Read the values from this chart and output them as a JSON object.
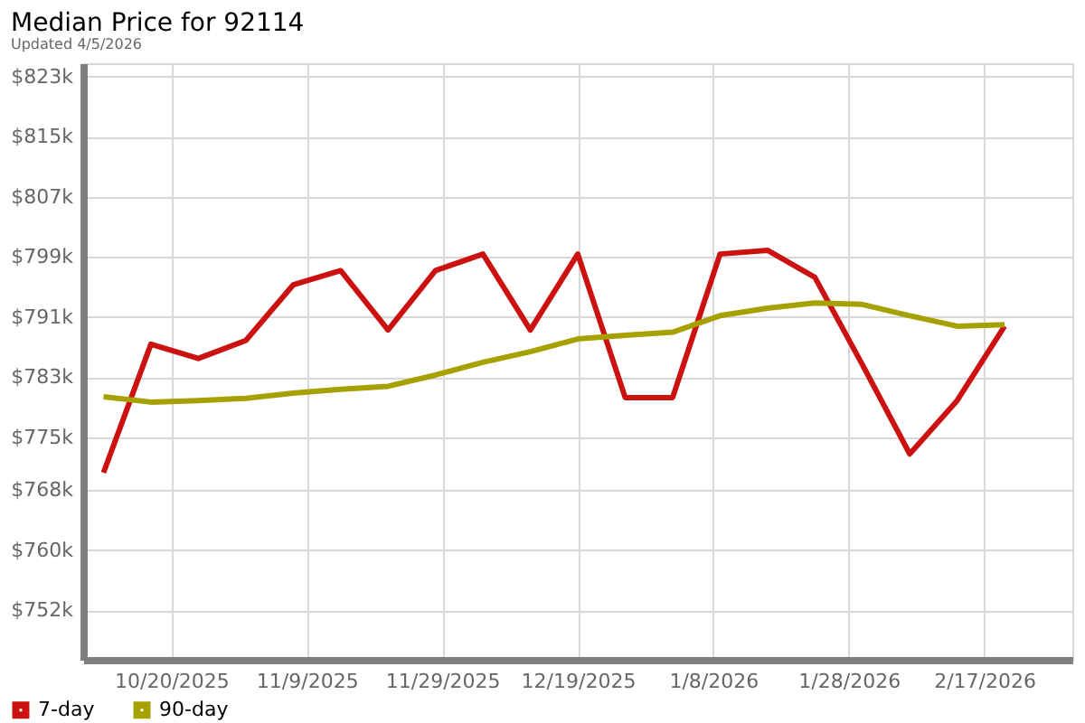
{
  "chart_data": {
    "type": "line",
    "title": "Median Price for 92114",
    "subtitle": "Updated 4/5/2026",
    "x": [
      "2025-10-10",
      "2025-10-17",
      "2025-10-24",
      "2025-10-31",
      "2025-11-07",
      "2025-11-14",
      "2025-11-21",
      "2025-11-28",
      "2025-12-05",
      "2025-12-12",
      "2025-12-19",
      "2025-12-26",
      "2026-01-02",
      "2026-01-09",
      "2026-01-16",
      "2026-01-23",
      "2026-01-30",
      "2026-02-06",
      "2026-02-13",
      "2026-02-20"
    ],
    "series": [
      {
        "name": "7-day",
        "color": "#cc1111",
        "values": [
          770300,
          787400,
          785500,
          787900,
          795300,
          797200,
          789300,
          797200,
          799400,
          789300,
          799400,
          780300,
          780300,
          799400,
          799900,
          796300,
          784700,
          772800,
          779900,
          789800
        ]
      },
      {
        "name": "90-day",
        "color": "#a6a000",
        "values": [
          780400,
          779700,
          779900,
          780200,
          780900,
          781400,
          781800,
          783300,
          785000,
          786400,
          788100,
          788600,
          789000,
          791200,
          792200,
          792900,
          792700,
          791200,
          789800,
          790000
        ]
      }
    ],
    "xlim": [
      "2025-10-07",
      "2026-03-02"
    ],
    "xticks": [
      {
        "value": "2025-10-20",
        "label": "10/20/2025"
      },
      {
        "value": "2025-11-09",
        "label": "11/9/2025"
      },
      {
        "value": "2025-11-29",
        "label": "11/29/2025"
      },
      {
        "value": "2025-12-19",
        "label": "12/19/2025"
      },
      {
        "value": "2026-01-08",
        "label": "1/8/2026"
      },
      {
        "value": "2026-01-28",
        "label": "1/28/2026"
      },
      {
        "value": "2026-02-17",
        "label": "2/17/2026"
      }
    ],
    "ylim": [
      745400,
      824800
    ],
    "yticks": [
      {
        "value": 752000,
        "label": "$752k"
      },
      {
        "value": 760000,
        "label": "$760k"
      },
      {
        "value": 768000,
        "label": "$768k"
      },
      {
        "value": 775000,
        "label": "$775k"
      },
      {
        "value": 783000,
        "label": "$783k"
      },
      {
        "value": 791000,
        "label": "$791k"
      },
      {
        "value": 799000,
        "label": "$799k"
      },
      {
        "value": 807000,
        "label": "$807k"
      },
      {
        "value": 815000,
        "label": "$815k"
      },
      {
        "value": 823000,
        "label": "$823k"
      }
    ],
    "grid": true,
    "legend": "bottom left",
    "marker": "none",
    "line_style": "solid"
  }
}
